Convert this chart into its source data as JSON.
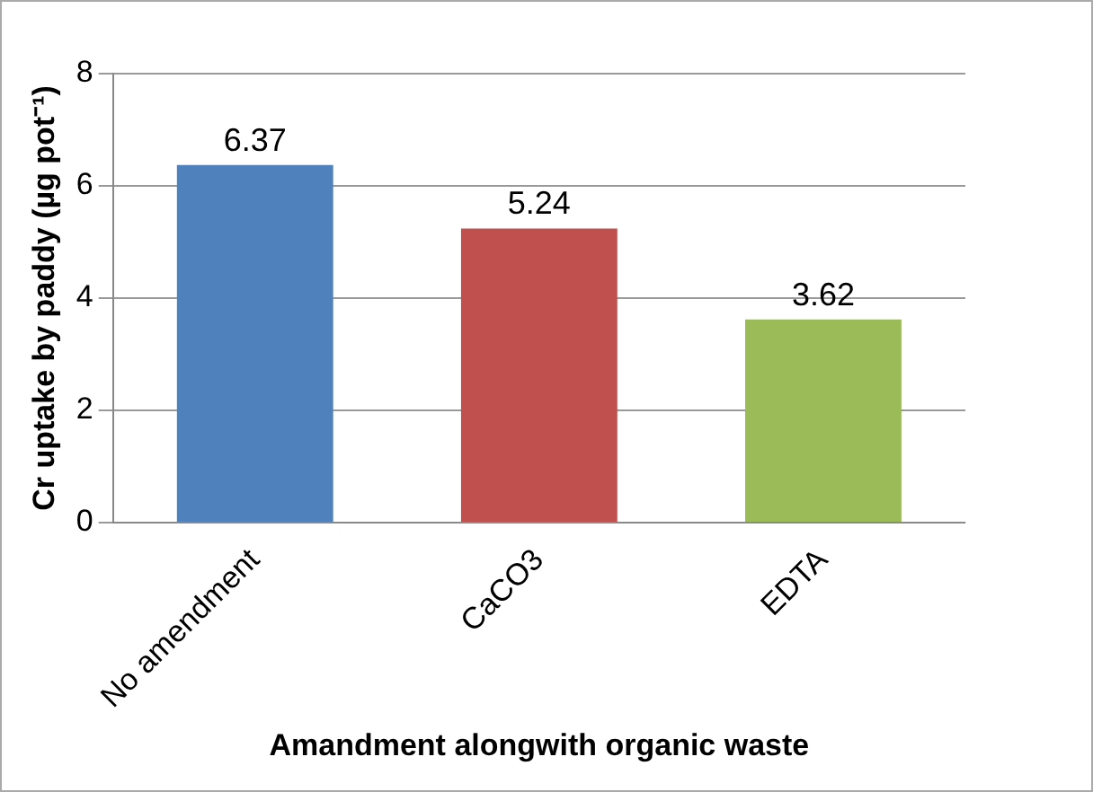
{
  "chart_data": {
    "type": "bar",
    "xlabel": "Amandment alongwith organic waste",
    "ylabel": "Cr uptake by paddy (µg pot⁻¹)",
    "categories": [
      "No amendment",
      "CaCO3",
      "EDTA"
    ],
    "values": [
      6.37,
      5.24,
      3.62
    ],
    "colors": [
      "#4f81bd",
      "#c0504d",
      "#9bbb59"
    ],
    "ylim": [
      0,
      8
    ],
    "yticks": [
      0,
      2,
      4,
      6,
      8
    ],
    "grid": "y",
    "data_labels": true,
    "legend": false
  }
}
